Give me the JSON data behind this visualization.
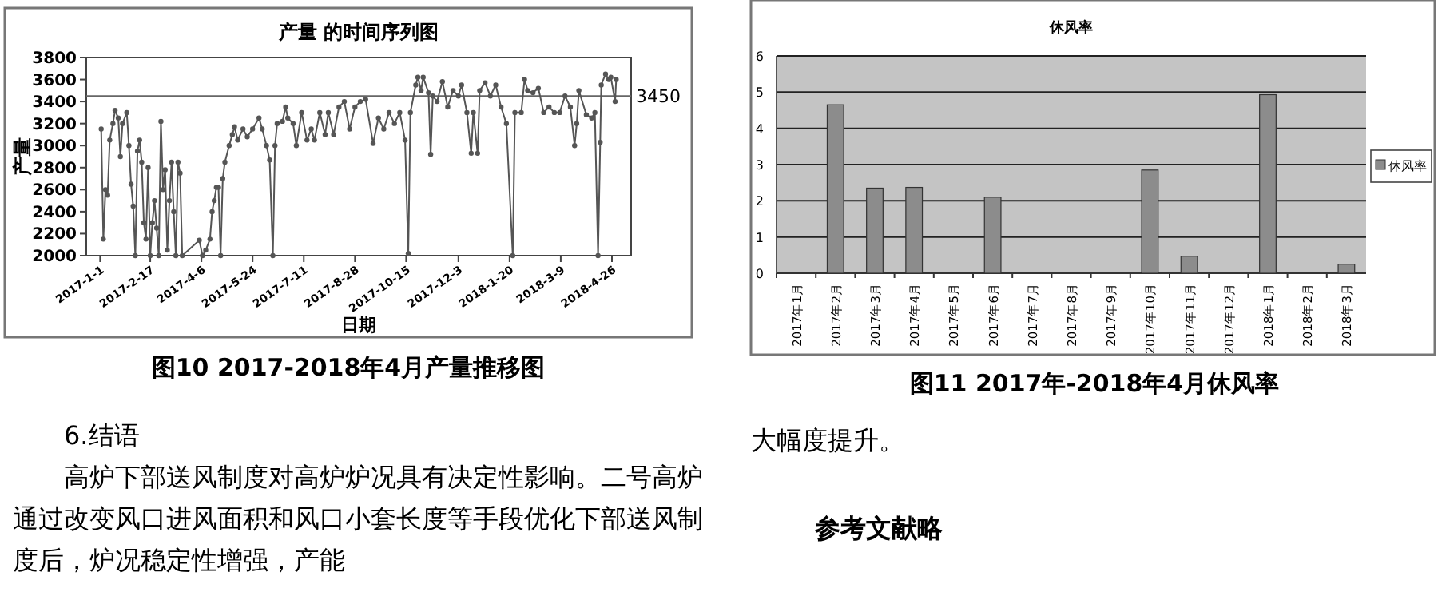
{
  "chart_data": [
    {
      "type": "line",
      "title": "产量 的时间序列图",
      "xlabel": "日期",
      "ylabel": "产量",
      "color": "#555555",
      "marker": "circle",
      "x": [
        "2017-01-02",
        "2017-01-04",
        "2017-01-06",
        "2017-01-08",
        "2017-01-10",
        "2017-01-13",
        "2017-01-15",
        "2017-01-18",
        "2017-01-20",
        "2017-01-22",
        "2017-01-26",
        "2017-01-28",
        "2017-01-30",
        "2017-02-01",
        "2017-02-03",
        "2017-02-05",
        "2017-02-07",
        "2017-02-09",
        "2017-02-11",
        "2017-02-13",
        "2017-02-15",
        "2017-02-17",
        "2017-02-19",
        "2017-02-21",
        "2017-02-23",
        "2017-02-25",
        "2017-02-27",
        "2017-03-01",
        "2017-03-03",
        "2017-03-05",
        "2017-03-07",
        "2017-03-09",
        "2017-03-11",
        "2017-03-13",
        "2017-03-15",
        "2017-03-17",
        "2017-03-19",
        "2017-04-04",
        "2017-04-07",
        "2017-04-10",
        "2017-04-14",
        "2017-04-16",
        "2017-04-18",
        "2017-04-20",
        "2017-04-22",
        "2017-04-24",
        "2017-04-26",
        "2017-04-28",
        "2017-05-02",
        "2017-05-05",
        "2017-05-07",
        "2017-05-10",
        "2017-05-15",
        "2017-05-19",
        "2017-05-24",
        "2017-05-30",
        "2017-06-02",
        "2017-06-06",
        "2017-06-09",
        "2017-06-12",
        "2017-06-14",
        "2017-06-16",
        "2017-06-21",
        "2017-06-24",
        "2017-06-26",
        "2017-07-01",
        "2017-07-04",
        "2017-07-09",
        "2017-07-14",
        "2017-07-18",
        "2017-07-21",
        "2017-07-26",
        "2017-07-31",
        "2017-08-03",
        "2017-08-08",
        "2017-08-13",
        "2017-08-18",
        "2017-08-23",
        "2017-08-28",
        "2017-09-02",
        "2017-09-07",
        "2017-09-14",
        "2017-09-19",
        "2017-09-24",
        "2017-09-29",
        "2017-10-04",
        "2017-10-09",
        "2017-10-14",
        "2017-10-17",
        "2017-10-19",
        "2017-10-24",
        "2017-10-26",
        "2017-10-29",
        "2017-10-31",
        "2017-11-05",
        "2017-11-07",
        "2017-11-09",
        "2017-11-13",
        "2017-11-18",
        "2017-11-23",
        "2017-11-28",
        "2017-12-03",
        "2017-12-06",
        "2017-12-11",
        "2017-12-15",
        "2017-12-17",
        "2017-12-21",
        "2017-12-23",
        "2017-12-28",
        "2018-01-02",
        "2018-01-07",
        "2018-01-12",
        "2018-01-17",
        "2018-01-23",
        "2018-01-25",
        "2018-01-31",
        "2018-02-03",
        "2018-02-06",
        "2018-02-11",
        "2018-02-16",
        "2018-02-21",
        "2018-02-26",
        "2018-03-03",
        "2018-03-08",
        "2018-03-13",
        "2018-03-18",
        "2018-03-22",
        "2018-03-24",
        "2018-03-26",
        "2018-04-02",
        "2018-04-07",
        "2018-04-10",
        "2018-04-13",
        "2018-04-15",
        "2018-04-16",
        "2018-04-20",
        "2018-04-23",
        "2018-04-25",
        "2018-04-29",
        "2018-04-30"
      ],
      "values": [
        3150,
        2150,
        2600,
        2550,
        3050,
        3200,
        3320,
        3250,
        2900,
        3200,
        3300,
        3000,
        2650,
        2450,
        2000,
        2950,
        3050,
        2850,
        2300,
        2150,
        2800,
        2000,
        2300,
        2500,
        2250,
        2000,
        3220,
        2600,
        2780,
        2050,
        2500,
        2850,
        2400,
        2000,
        2850,
        2750,
        2000,
        2140,
        2000,
        2050,
        2150,
        2400,
        2500,
        2620,
        2620,
        2000,
        2700,
        2850,
        3000,
        3100,
        3170,
        3050,
        3150,
        3080,
        3150,
        3250,
        3150,
        3000,
        2870,
        2000,
        3000,
        3200,
        3220,
        3350,
        3250,
        3200,
        3000,
        3300,
        3050,
        3150,
        3050,
        3300,
        3100,
        3300,
        3100,
        3350,
        3400,
        3150,
        3350,
        3400,
        3420,
        3020,
        3250,
        3150,
        3300,
        3200,
        3300,
        3050,
        2020,
        3300,
        3550,
        3620,
        3500,
        3620,
        3480,
        2920,
        3450,
        3400,
        3580,
        3350,
        3500,
        3450,
        3550,
        3300,
        2930,
        3300,
        2930,
        3500,
        3570,
        3450,
        3550,
        3350,
        3200,
        2000,
        3300,
        3300,
        3600,
        3500,
        3480,
        3520,
        3300,
        3350,
        3300,
        3300,
        3450,
        3350,
        3000,
        3200,
        3500,
        3280,
        3250,
        3300,
        2000,
        3030,
        3550,
        3650,
        3600,
        3620,
        3400,
        3600
      ],
      "xlim": [
        "2016-12-19",
        "2018-05-14"
      ],
      "xticks": [
        {
          "value": "2017-01-01",
          "label": "2017-1-1"
        },
        {
          "value": "2017-02-17",
          "label": "2017-2-17"
        },
        {
          "value": "2017-04-06",
          "label": "2017-4-6"
        },
        {
          "value": "2017-05-24",
          "label": "2017-5-24"
        },
        {
          "value": "2017-07-11",
          "label": "2017-7-11"
        },
        {
          "value": "2017-08-28",
          "label": "2017-8-28"
        },
        {
          "value": "2017-10-15",
          "label": "2017-10-15"
        },
        {
          "value": "2017-12-03",
          "label": "2017-12-3"
        },
        {
          "value": "2018-01-20",
          "label": "2018-1-20"
        },
        {
          "value": "2018-03-09",
          "label": "2018-3-9"
        },
        {
          "value": "2018-04-26",
          "label": "2018-4-26"
        }
      ],
      "ylim": [
        2000,
        3800
      ],
      "yticks": [
        2000,
        2200,
        2400,
        2600,
        2800,
        3000,
        3200,
        3400,
        3600,
        3800
      ],
      "ref_lines": [
        {
          "axis": "y",
          "value": 3450,
          "label": "3450"
        }
      ],
      "annotations": [
        "图10  2017-2018年4月产量推移图",
        "6.结语",
        "高炉下部送风制度对高炉炉况具有决定性影响。二号高炉通过改变风口进风面积和风口小套长度等手段优化下部送风制度后，炉况稳定性增强，产能"
      ]
    },
    {
      "type": "bar",
      "title": "休风率",
      "legend": "right",
      "grid": "y",
      "categories": [
        "2017年1月",
        "2017年2月",
        "2017年3月",
        "2017年4月",
        "2017年5月",
        "2017年6月",
        "2017年7月",
        "2017年8月",
        "2017年9月",
        "2017年10月",
        "2017年11月",
        "2017年12月",
        "2018年1月",
        "2018年2月",
        "2018年3月"
      ],
      "series": [
        {
          "name": "休风率",
          "color": "#8c8c8c",
          "values": [
            0,
            4.65,
            2.35,
            2.37,
            0,
            2.1,
            0,
            0,
            0,
            2.85,
            0.47,
            0,
            4.93,
            0,
            0.25
          ]
        }
      ],
      "ylim": [
        0,
        6
      ],
      "yticks": [
        0,
        1,
        2,
        3,
        4,
        5,
        6
      ],
      "annotations": [
        "图11  2017年-2018年4月休风率",
        "大幅度提升。",
        "参考文献略"
      ]
    }
  ]
}
